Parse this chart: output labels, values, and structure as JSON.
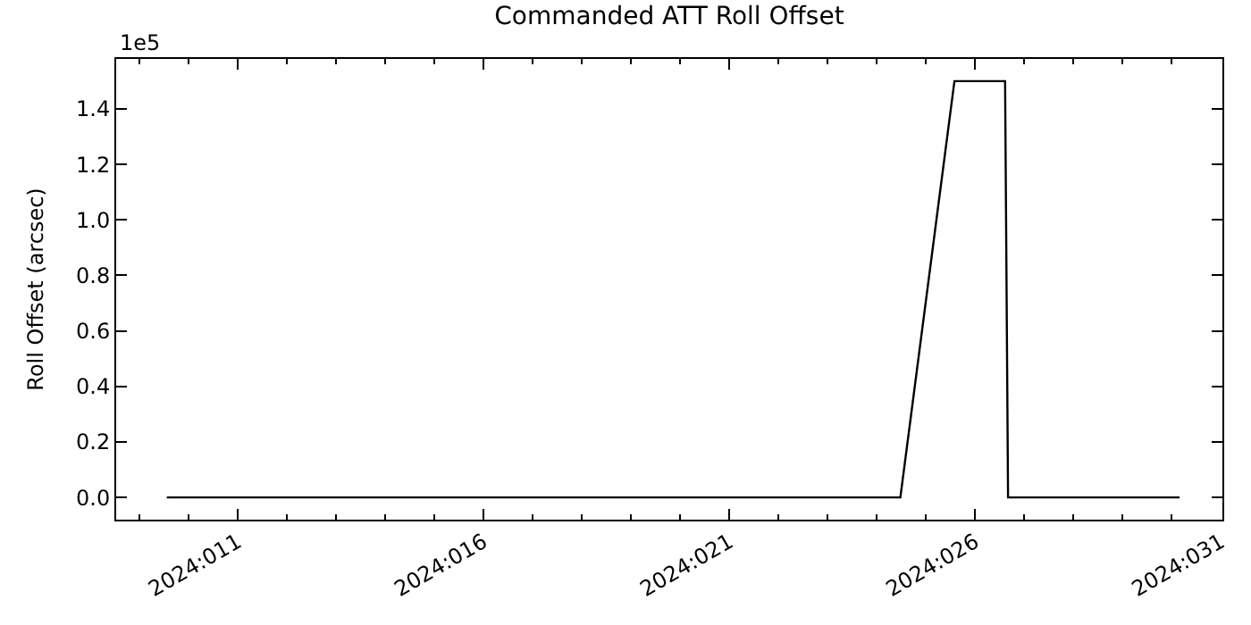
{
  "chart_data": {
    "type": "line",
    "title": "Commanded ATT Roll Offset",
    "ylabel": "Roll Offset (arcsec)",
    "annotations": [
      "1e5"
    ],
    "x": [
      "2024-01-09T13:26",
      "2024-01-24T11:31",
      "2024-01-25T13:55",
      "2024-01-26T14:38",
      "2024-01-26T16:05",
      "2024-01-30T03:50"
    ],
    "series": [
      {
        "color": "#000000",
        "values": [
          0,
          0,
          1.5,
          1.5,
          0,
          0
        ]
      }
    ],
    "xlim": [
      "2024-01-08T12:43",
      "2024-01-31T00:43"
    ],
    "xticks": [
      {
        "value": "2024-01-09",
        "label": null
      },
      {
        "value": "2024-01-10",
        "label": null
      },
      {
        "value": "2024-01-11",
        "label": "2024:011"
      },
      {
        "value": "2024-01-12",
        "label": null
      },
      {
        "value": "2024-01-13",
        "label": null
      },
      {
        "value": "2024-01-14",
        "label": null
      },
      {
        "value": "2024-01-15",
        "label": null
      },
      {
        "value": "2024-01-16",
        "label": "2024:016"
      },
      {
        "value": "2024-01-17",
        "label": null
      },
      {
        "value": "2024-01-18",
        "label": null
      },
      {
        "value": "2024-01-19",
        "label": null
      },
      {
        "value": "2024-01-20",
        "label": null
      },
      {
        "value": "2024-01-21",
        "label": "2024:021"
      },
      {
        "value": "2024-01-22",
        "label": null
      },
      {
        "value": "2024-01-23",
        "label": null
      },
      {
        "value": "2024-01-24",
        "label": null
      },
      {
        "value": "2024-01-25",
        "label": null
      },
      {
        "value": "2024-01-26",
        "label": "2024:026"
      },
      {
        "value": "2024-01-27",
        "label": null
      },
      {
        "value": "2024-01-28",
        "label": null
      },
      {
        "value": "2024-01-29",
        "label": null
      },
      {
        "value": "2024-01-30",
        "label": null
      },
      {
        "value": "2024-01-31",
        "label": "2024:031"
      }
    ],
    "ylim": [
      -0.08,
      1.58
    ],
    "yticks": [
      {
        "value": 0,
        "label": "0.0"
      },
      0.2,
      0.4,
      0.6,
      0.8,
      {
        "value": 1,
        "label": "1.0"
      },
      1.2,
      1.4
    ],
    "marker": "none",
    "line_style": "solid"
  }
}
